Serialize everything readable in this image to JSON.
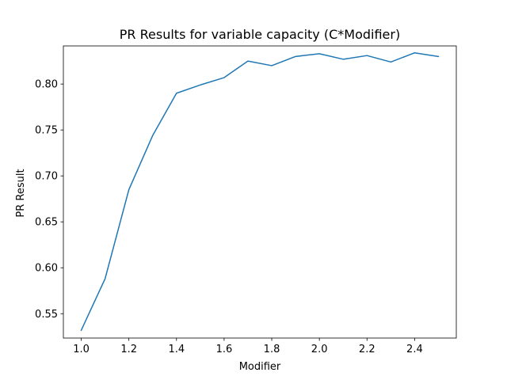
{
  "chart_data": {
    "type": "line",
    "title": "PR Results for variable capacity (C*Modifier)",
    "xlabel": "Modifier",
    "ylabel": "PR Result",
    "xlim": [
      0.925,
      2.575
    ],
    "ylim": [
      0.5235,
      0.8415
    ],
    "xticks": [
      1.0,
      1.2,
      1.4,
      1.6,
      1.8,
      2.0,
      2.2,
      2.4
    ],
    "xtick_labels": [
      "1.0",
      "1.2",
      "1.4",
      "1.6",
      "1.8",
      "2.0",
      "2.2",
      "2.4"
    ],
    "yticks": [
      0.55,
      0.6,
      0.65,
      0.7,
      0.75,
      0.8
    ],
    "ytick_labels": [
      "0.55",
      "0.60",
      "0.65",
      "0.70",
      "0.75",
      "0.80"
    ],
    "grid": false,
    "series": [
      {
        "color": "#1f77b4",
        "x": [
          1.0,
          1.1,
          1.2,
          1.3,
          1.4,
          1.5,
          1.6,
          1.7,
          1.8,
          1.9,
          2.0,
          2.1,
          2.2,
          2.3,
          2.4,
          2.5
        ],
        "y": [
          0.532,
          0.588,
          0.685,
          0.744,
          0.79,
          0.799,
          0.807,
          0.825,
          0.82,
          0.83,
          0.833,
          0.827,
          0.831,
          0.824,
          0.834,
          0.83
        ]
      }
    ]
  }
}
